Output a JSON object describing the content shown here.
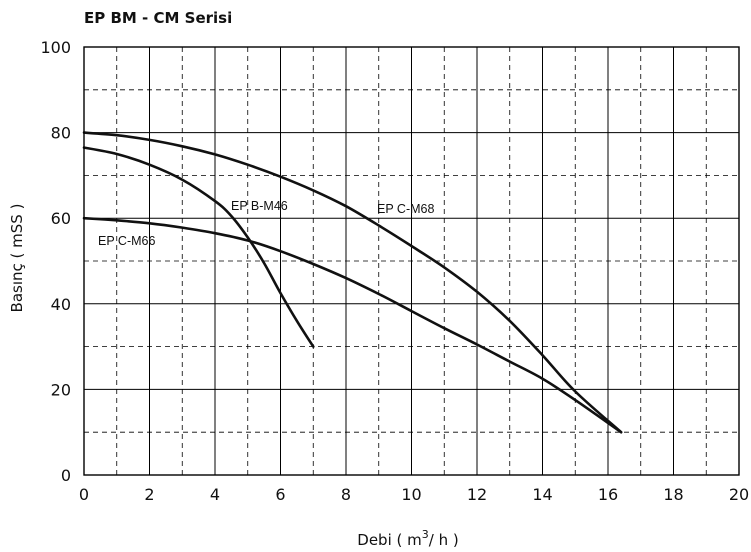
{
  "chart_data": {
    "type": "line",
    "title": "EP BM - CM Serisi",
    "xlabel_prefix": "Debi ( m",
    "xlabel_sup": "3",
    "xlabel_suffix": "/ h )",
    "ylabel": "Basınç ( mSS )",
    "xlim": [
      0,
      20
    ],
    "ylim": [
      0,
      100
    ],
    "x_ticks": [
      "0",
      "2",
      "4",
      "6",
      "8",
      "10",
      "12",
      "14",
      "16",
      "18",
      "20"
    ],
    "y_ticks": [
      "0",
      "20",
      "40",
      "60",
      "80",
      "100"
    ],
    "grid": true,
    "series": [
      {
        "name": "EP C-M66",
        "x": [
          0,
          1,
          2,
          3,
          4,
          5,
          6,
          7,
          8,
          9,
          10,
          11,
          12,
          13,
          14,
          15,
          16.4
        ],
        "y": [
          60,
          59.5,
          58.8,
          57.8,
          56.5,
          54.8,
          52.3,
          49.3,
          46,
          42.3,
          38.3,
          34.3,
          30.5,
          26.5,
          22.5,
          17.5,
          10
        ]
      },
      {
        "name": "EP B-M46",
        "x": [
          0,
          1,
          2,
          3,
          4,
          4.5,
          5,
          5.5,
          6,
          6.5,
          7
        ],
        "y": [
          76.5,
          75,
          72.5,
          69,
          64,
          60.5,
          55.5,
          49.5,
          42.5,
          36,
          30
        ]
      },
      {
        "name": "EP C-M68",
        "x": [
          0,
          1,
          2,
          3,
          4,
          5,
          6,
          7,
          8,
          9,
          10,
          11,
          12,
          13,
          14,
          15,
          16.4
        ],
        "y": [
          80,
          79.4,
          78.3,
          76.8,
          74.9,
          72.5,
          69.7,
          66.5,
          62.8,
          58.3,
          53.5,
          48.5,
          42.8,
          36,
          28,
          19.5,
          10
        ]
      }
    ]
  }
}
